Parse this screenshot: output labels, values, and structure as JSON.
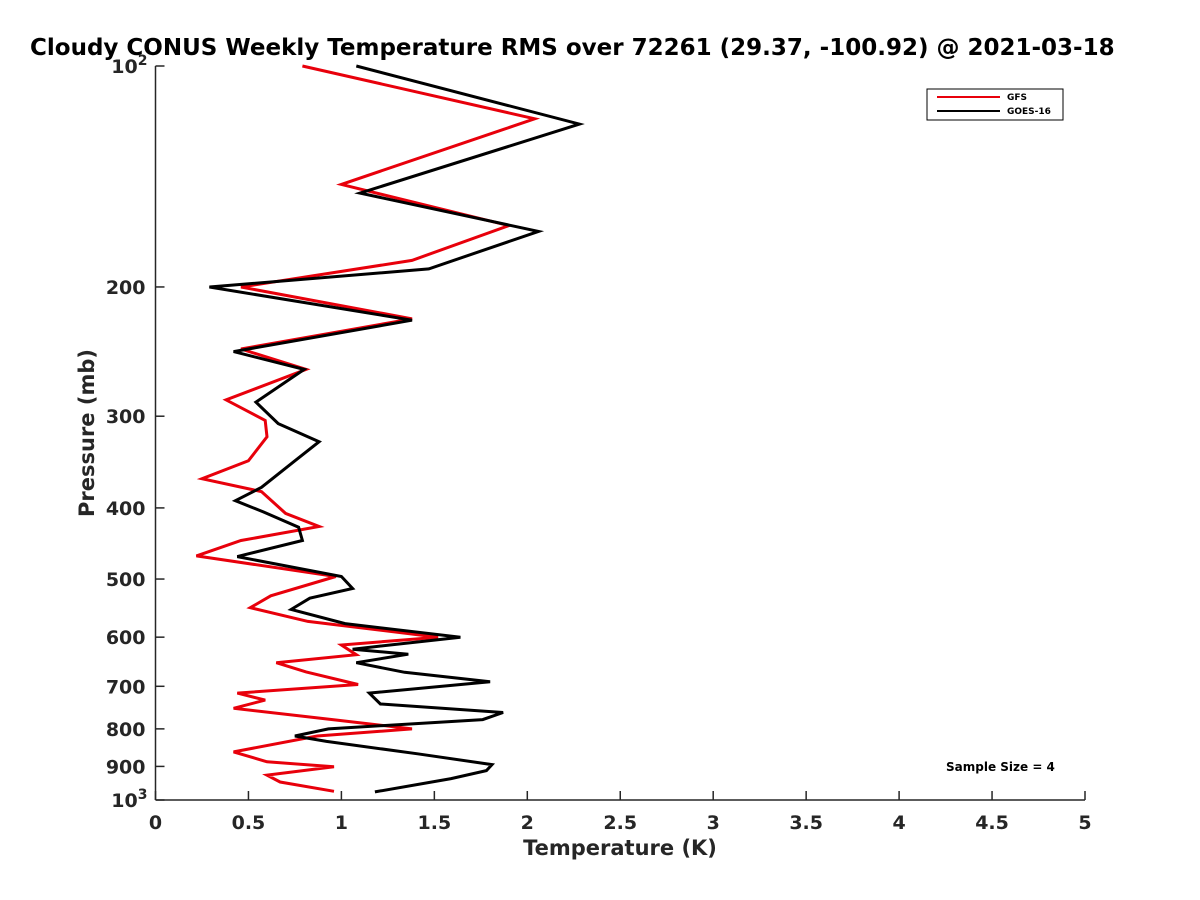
{
  "chart_data": {
    "type": "line",
    "title": "Cloudy CONUS Weekly Temperature RMS over 72261 (29.37, -100.92) @ 2021-03-18",
    "xlabel": "Temperature (K)",
    "ylabel": "Pressure (mb)",
    "xlim": [
      0,
      5
    ],
    "ylim": [
      100,
      1000
    ],
    "yscale": "log",
    "y_reversed": true,
    "grid": false,
    "legend_position": "top-right",
    "xticks": [
      {
        "value": 0,
        "label": "0"
      },
      {
        "value": 0.5,
        "label": "0.5"
      },
      {
        "value": 1,
        "label": "1"
      },
      {
        "value": 1.5,
        "label": "1.5"
      },
      {
        "value": 2,
        "label": "2"
      },
      {
        "value": 2.5,
        "label": "2.5"
      },
      {
        "value": 3,
        "label": "3"
      },
      {
        "value": 3.5,
        "label": "3.5"
      },
      {
        "value": 4,
        "label": "4"
      },
      {
        "value": 4.5,
        "label": "4.5"
      },
      {
        "value": 5,
        "label": "5"
      }
    ],
    "yticks": [
      {
        "value": 100,
        "base": "10",
        "exp": "2"
      },
      {
        "value": 200,
        "label": "200"
      },
      {
        "value": 300,
        "label": "300"
      },
      {
        "value": 400,
        "label": "400"
      },
      {
        "value": 500,
        "label": "500"
      },
      {
        "value": 600,
        "label": "600"
      },
      {
        "value": 700,
        "label": "700"
      },
      {
        "value": 800,
        "label": "800"
      },
      {
        "value": 900,
        "label": "900"
      },
      {
        "value": 1000,
        "base": "10",
        "exp": "3"
      }
    ],
    "series": [
      {
        "name": "GFS",
        "color": "#e8000b",
        "points": [
          [
            0.79,
            100
          ],
          [
            2.04,
            118
          ],
          [
            1.0,
            145
          ],
          [
            1.9,
            165
          ],
          [
            1.38,
            184
          ],
          [
            0.46,
            200
          ],
          [
            1.38,
            221
          ],
          [
            0.46,
            243
          ],
          [
            0.81,
            259
          ],
          [
            0.38,
            285
          ],
          [
            0.59,
            304
          ],
          [
            0.6,
            320
          ],
          [
            0.5,
            345
          ],
          [
            0.25,
            365
          ],
          [
            0.57,
            380
          ],
          [
            0.7,
            407
          ],
          [
            0.88,
            424
          ],
          [
            0.46,
            443
          ],
          [
            0.22,
            465
          ],
          [
            0.97,
            496
          ],
          [
            0.62,
            527
          ],
          [
            0.51,
            547
          ],
          [
            0.82,
            571
          ],
          [
            1.52,
            600
          ],
          [
            1.0,
            615
          ],
          [
            1.08,
            634
          ],
          [
            0.65,
            650
          ],
          [
            0.81,
            669
          ],
          [
            1.09,
            696
          ],
          [
            0.44,
            715
          ],
          [
            0.59,
            731
          ],
          [
            0.42,
            750
          ],
          [
            0.97,
            778
          ],
          [
            1.38,
            800
          ],
          [
            0.87,
            818
          ],
          [
            0.42,
            860
          ],
          [
            0.6,
            887
          ],
          [
            0.96,
            901
          ],
          [
            0.6,
            925
          ],
          [
            0.67,
            945
          ],
          [
            0.96,
            973
          ]
        ]
      },
      {
        "name": "GOES-16",
        "color": "#000000",
        "points": [
          [
            1.08,
            100
          ],
          [
            2.28,
            120
          ],
          [
            1.1,
            149
          ],
          [
            2.06,
            168
          ],
          [
            1.47,
            189
          ],
          [
            0.29,
            200
          ],
          [
            1.38,
            222
          ],
          [
            0.42,
            245
          ],
          [
            0.8,
            259
          ],
          [
            0.54,
            287
          ],
          [
            0.66,
            307
          ],
          [
            0.88,
            325
          ],
          [
            0.75,
            345
          ],
          [
            0.57,
            375
          ],
          [
            0.43,
            391
          ],
          [
            0.58,
            405
          ],
          [
            0.77,
            425
          ],
          [
            0.79,
            443
          ],
          [
            0.44,
            466
          ],
          [
            1.0,
            496
          ],
          [
            1.06,
            515
          ],
          [
            0.83,
            531
          ],
          [
            0.73,
            550
          ],
          [
            1.02,
            575
          ],
          [
            1.64,
            600
          ],
          [
            1.06,
            623
          ],
          [
            1.36,
            633
          ],
          [
            1.08,
            650
          ],
          [
            1.34,
            670
          ],
          [
            1.8,
            690
          ],
          [
            1.15,
            715
          ],
          [
            1.21,
            740
          ],
          [
            1.87,
            760
          ],
          [
            1.76,
            777
          ],
          [
            0.93,
            800
          ],
          [
            0.75,
            818
          ],
          [
            0.92,
            832
          ],
          [
            1.41,
            865
          ],
          [
            1.81,
            895
          ],
          [
            1.78,
            912
          ],
          [
            1.59,
            935
          ],
          [
            1.18,
            975
          ]
        ]
      }
    ],
    "annotations": [
      {
        "text": "Sample Size = 4",
        "position": "bottom-right"
      }
    ]
  }
}
